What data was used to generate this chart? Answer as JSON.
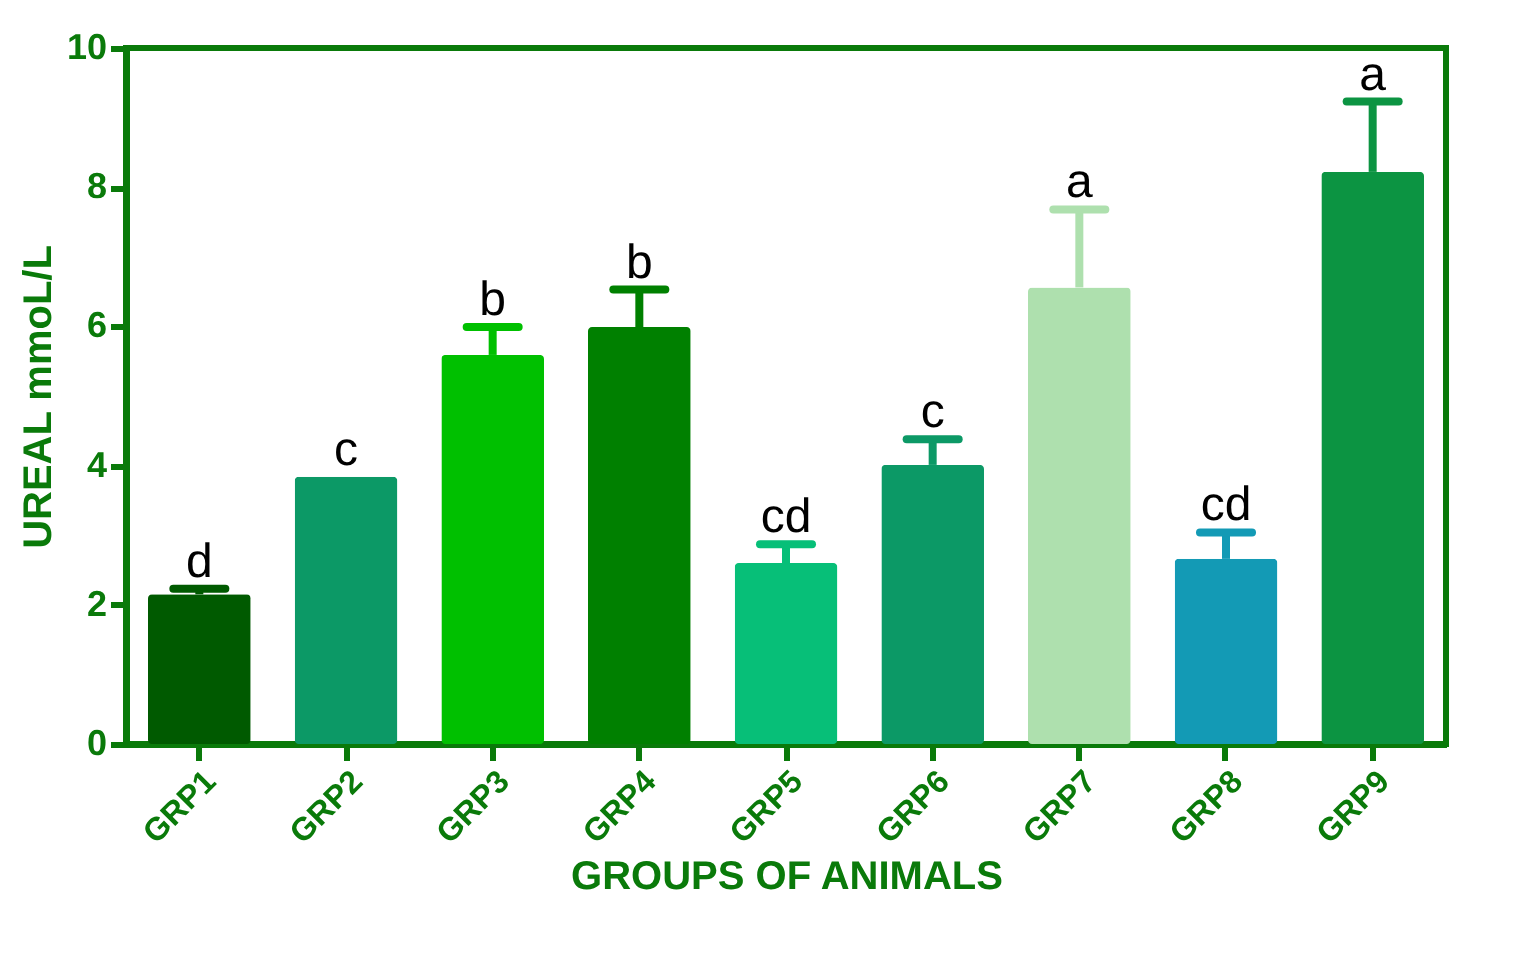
{
  "chart_data": {
    "type": "bar",
    "xlabel": "GROUPS OF ANIMALS",
    "ylabel": "UREAL mmoL/L",
    "categories": [
      "GRP1",
      "GRP2",
      "GRP3",
      "GRP4",
      "GRP5",
      "GRP6",
      "GRP7",
      "GRP8",
      "GRP9"
    ],
    "values": [
      2.15,
      3.84,
      5.59,
      5.99,
      2.6,
      4.01,
      6.56,
      2.66,
      8.22
    ],
    "errors": [
      [
        2.15,
        2.23
      ],
      null,
      [
        5.59,
        5.99
      ],
      [
        5.99,
        6.53
      ],
      [
        2.6,
        2.87
      ],
      [
        4.01,
        4.38
      ],
      [
        6.56,
        7.68
      ],
      [
        2.66,
        3.04
      ],
      [
        8.22,
        9.23
      ]
    ],
    "colors": [
      "#005a00",
      "#0c9966",
      "#00c000",
      "#008000",
      "#07bf78",
      "#0c9966",
      "#aee0ae",
      "#139ab5",
      "#0c9442"
    ],
    "ylim": [
      0,
      10
    ],
    "yticks": [
      0,
      2,
      4,
      6,
      8,
      10
    ],
    "grid": false,
    "annotations": [
      {
        "text": "d",
        "x": "GRP1",
        "y": 2.23
      },
      {
        "text": "c",
        "x": "GRP2",
        "y": 3.84
      },
      {
        "text": "b",
        "x": "GRP3",
        "y": 5.99
      },
      {
        "text": "b",
        "x": "GRP4",
        "y": 6.53
      },
      {
        "text": "cd",
        "x": "GRP5",
        "y": 2.87
      },
      {
        "text": "c",
        "x": "GRP6",
        "y": 4.38
      },
      {
        "text": "a",
        "x": "GRP7",
        "y": 7.68
      },
      {
        "text": "cd",
        "x": "GRP8",
        "y": 3.04
      },
      {
        "text": "a",
        "x": "GRP9",
        "y": 9.23
      }
    ]
  }
}
